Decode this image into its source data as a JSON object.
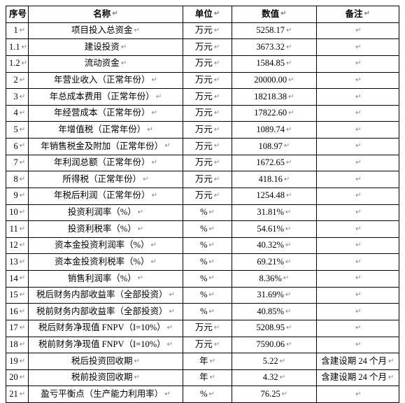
{
  "marks": {
    "enter": "↵"
  },
  "colors": {
    "border": "#000000",
    "text": "#000000",
    "mark": "#808080",
    "background": "#ffffff"
  },
  "font": {
    "family": "SimSun",
    "size_pt": 10.5,
    "header_weight": "bold"
  },
  "columns": {
    "seq": "序号",
    "name": "名称",
    "unit": "单位",
    "value": "数值",
    "remark": "备注"
  },
  "rows": [
    {
      "seq": "1",
      "name": "项目投入总资金",
      "unit": "万元",
      "value": "5258.17",
      "remark": ""
    },
    {
      "seq": "1.1",
      "name": "建设投资",
      "unit": "万元",
      "value": "3673.32",
      "remark": ""
    },
    {
      "seq": "1.2",
      "name": "流动资金",
      "unit": "万元",
      "value": "1584.85",
      "remark": ""
    },
    {
      "seq": "2",
      "name": "年营业收入（正常年份）",
      "unit": "万元",
      "value": "20000.00",
      "remark": ""
    },
    {
      "seq": "3",
      "name": "年总成本费用（正常年份）",
      "unit": "万元",
      "value": "18218.38",
      "remark": ""
    },
    {
      "seq": "4",
      "name": "年经营成本（正常年份）",
      "unit": "万元",
      "value": "17822.60",
      "remark": ""
    },
    {
      "seq": "5",
      "name": "年增值税（正常年份）",
      "unit": "万元",
      "value": "1089.74",
      "remark": ""
    },
    {
      "seq": "6",
      "name": "年销售税金及附加（正常年份）",
      "unit": "万元",
      "value": "108.97",
      "remark": ""
    },
    {
      "seq": "7",
      "name": "年利润总额（正常年份）",
      "unit": "万元",
      "value": "1672.65",
      "remark": ""
    },
    {
      "seq": "8",
      "name": "所得税（正常年份）",
      "unit": "万元",
      "value": "418.16",
      "remark": ""
    },
    {
      "seq": "9",
      "name": "年税后利润（正常年份）",
      "unit": "万元",
      "value": "1254.48",
      "remark": ""
    },
    {
      "seq": "10",
      "name": "投资利润率（%）",
      "unit": "%",
      "value": "31.81%",
      "remark": ""
    },
    {
      "seq": "11",
      "name": "投资利税率（%）",
      "unit": "%",
      "value": "54.61%",
      "remark": ""
    },
    {
      "seq": "12",
      "name": "资本金投资利润率（%）",
      "unit": "%",
      "value": "40.32%",
      "remark": ""
    },
    {
      "seq": "13",
      "name": "资本金投资利税率（%）",
      "unit": "%",
      "value": "69.21%",
      "remark": ""
    },
    {
      "seq": "14",
      "name": "销售利润率（%）",
      "unit": "%",
      "value": "8.36%",
      "remark": ""
    },
    {
      "seq": "15",
      "name": "税后财务内部收益率（全部投资）",
      "unit": "%",
      "value": "31.69%",
      "remark": ""
    },
    {
      "seq": "16",
      "name": "税前财务内部收益率（全部投资）",
      "unit": "%",
      "value": "40.85%",
      "remark": ""
    },
    {
      "seq": "17",
      "name": "税后财务净现值 FNPV（I=10%）",
      "unit": "万元",
      "value": "5208.95",
      "remark": ""
    },
    {
      "seq": "18",
      "name": "税前财务净现值 FNPV（I=10%）",
      "unit": "万元",
      "value": "7590.06",
      "remark": ""
    },
    {
      "seq": "19",
      "name": "税后投资回收期",
      "unit": "年",
      "value": "5.22",
      "remark": "含建设期 24 个月"
    },
    {
      "seq": "20",
      "name": "税前投资回收期",
      "unit": "年",
      "value": "4.32",
      "remark": "含建设期 24 个月"
    },
    {
      "seq": "21",
      "name": "盈亏平衡点（生产能力利用率）",
      "unit": "%",
      "value": "76.25",
      "remark": ""
    }
  ]
}
